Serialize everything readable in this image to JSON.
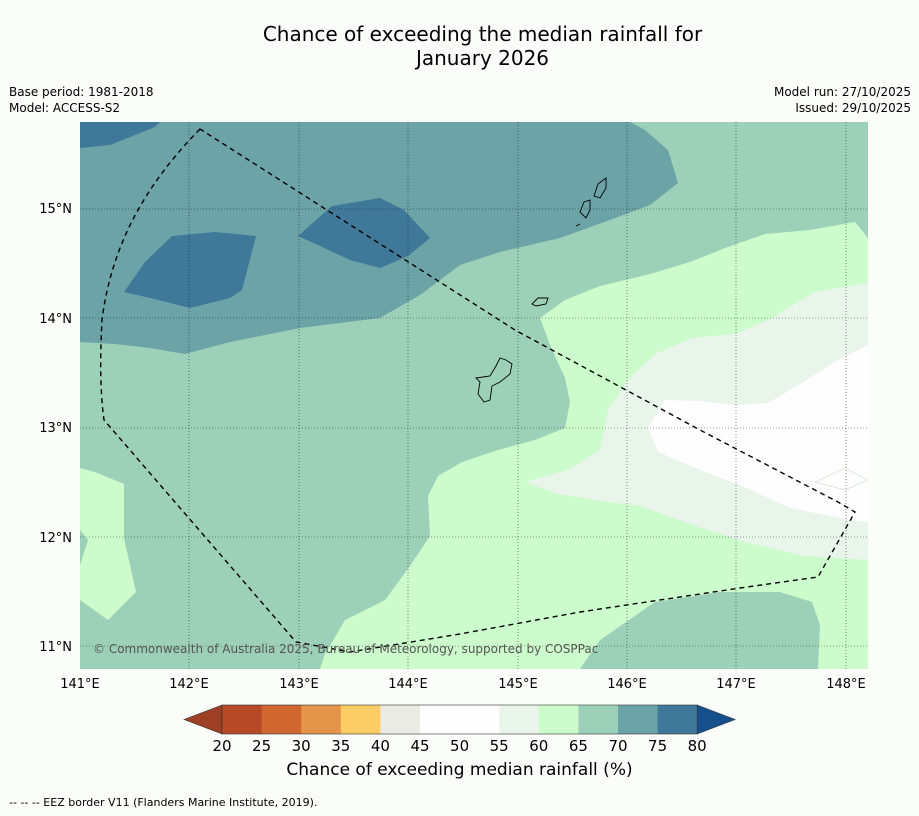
{
  "title_line1": "Chance of exceeding the median rainfall for",
  "title_line2": "January 2026",
  "meta": {
    "base_period": "Base period: 1981-2018",
    "model": "Model: ACCESS-S2",
    "model_run": "Model run: 27/10/2025",
    "issued": "Issued: 29/10/2025"
  },
  "map": {
    "x_ticks": [
      "141°E",
      "142°E",
      "143°E",
      "144°E",
      "145°E",
      "146°E",
      "147°E",
      "148°E"
    ],
    "y_ticks": [
      "15°N",
      "14°N",
      "13°N",
      "12°N",
      "11°N"
    ],
    "copyright": "© Commonwealth of Australia 2025, Bureau of Meteorology, supported by COSPPac",
    "colors": {
      "c75_80": "#3f7898",
      "c70_75": "#6ca3a6",
      "c65_70": "#9dd0b8",
      "c60_65": "#ccfccb",
      "c55_60": "#e9f4ea",
      "c50_55": "#fdfefd"
    }
  },
  "colorbar": {
    "labels": [
      "20",
      "25",
      "30",
      "35",
      "40",
      "45",
      "50",
      "55",
      "60",
      "65",
      "70",
      "75",
      "80"
    ],
    "colors": [
      "#9d3f25",
      "#b64a28",
      "#d06730",
      "#e4954a",
      "#fccc66",
      "#ebebe6",
      "#fefefe",
      "#fefefe",
      "#e9f4ea",
      "#ccfccb",
      "#9dd0b8",
      "#6ca3a6",
      "#3f7898",
      "#16508c"
    ],
    "title": "Chance of exceeding median rainfall (%)"
  },
  "footnote": "--  --  -- EEZ border V11 (Flanders Marine Institute, 2019)."
}
